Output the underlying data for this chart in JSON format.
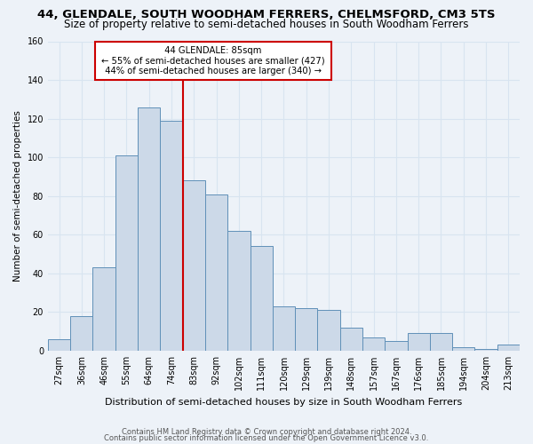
{
  "title": "44, GLENDALE, SOUTH WOODHAM FERRERS, CHELMSFORD, CM3 5TS",
  "subtitle": "Size of property relative to semi-detached houses in South Woodham Ferrers",
  "xlabel": "Distribution of semi-detached houses by size in South Woodham Ferrers",
  "ylabel": "Number of semi-detached properties",
  "categories": [
    "27sqm",
    "36sqm",
    "46sqm",
    "55sqm",
    "64sqm",
    "74sqm",
    "83sqm",
    "92sqm",
    "102sqm",
    "111sqm",
    "120sqm",
    "129sqm",
    "139sqm",
    "148sqm",
    "157sqm",
    "167sqm",
    "176sqm",
    "185sqm",
    "194sqm",
    "204sqm",
    "213sqm"
  ],
  "values": [
    6,
    18,
    43,
    101,
    126,
    119,
    88,
    81,
    62,
    54,
    23,
    22,
    21,
    12,
    7,
    5,
    9,
    9,
    2,
    1,
    3
  ],
  "bar_color": "#ccd9e8",
  "bar_edge_color": "#6090b8",
  "highlight_line_color": "#cc0000",
  "highlight_index": 6,
  "ylim": [
    0,
    160
  ],
  "yticks": [
    0,
    20,
    40,
    60,
    80,
    100,
    120,
    140,
    160
  ],
  "annotation_title": "44 GLENDALE: 85sqm",
  "annotation_line1": "← 55% of semi-detached houses are smaller (427)",
  "annotation_line2": "44% of semi-detached houses are larger (340) →",
  "annotation_box_color": "#ffffff",
  "annotation_box_edge": "#cc0000",
  "footer1": "Contains HM Land Registry data © Crown copyright and database right 2024.",
  "footer2": "Contains public sector information licensed under the Open Government Licence v3.0.",
  "background_color": "#edf2f8",
  "grid_color": "#d8e4f0",
  "bar_width": 1.0,
  "title_fontsize": 9.5,
  "subtitle_fontsize": 8.5,
  "ylabel_fontsize": 7.5,
  "xlabel_fontsize": 8,
  "tick_fontsize": 7
}
